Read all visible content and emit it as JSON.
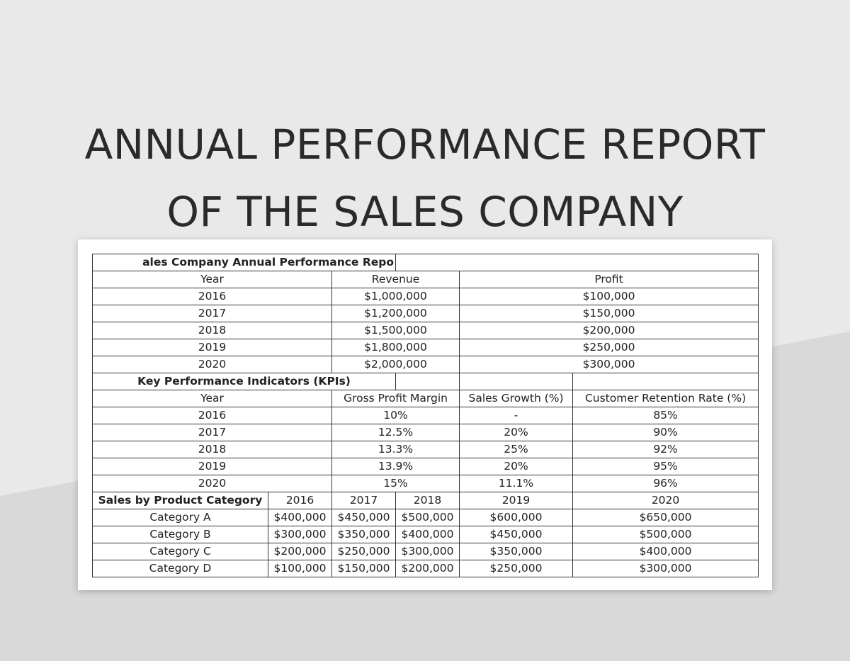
{
  "title": {
    "line1": "ANNUAL PERFORMANCE REPORT",
    "line2": "OF THE SALES COMPANY"
  },
  "sheet": {
    "section_title": "ales Company Annual Performance Repo",
    "annual": {
      "headers": [
        "Year",
        "Revenue",
        "Profit"
      ],
      "rows": [
        [
          "2016",
          "$1,000,000",
          "$100,000"
        ],
        [
          "2017",
          "$1,200,000",
          "$150,000"
        ],
        [
          "2018",
          "$1,500,000",
          "$200,000"
        ],
        [
          "2019",
          "$1,800,000",
          "$250,000"
        ],
        [
          "2020",
          "$2,000,000",
          "$300,000"
        ]
      ]
    },
    "kpi": {
      "title": "Key Performance Indicators (KPIs)",
      "headers": [
        "Year",
        "Gross Profit Margin",
        "Sales Growth (%)",
        "Customer Retention Rate (%)"
      ],
      "rows": [
        [
          "2016",
          "10%",
          "-",
          "85%"
        ],
        [
          "2017",
          "12.5%",
          "20%",
          "90%"
        ],
        [
          "2018",
          "13.3%",
          "25%",
          "92%"
        ],
        [
          "2019",
          "13.9%",
          "20%",
          "95%"
        ],
        [
          "2020",
          "15%",
          "11.1%",
          "96%"
        ]
      ]
    },
    "category": {
      "title": "Sales by Product Category",
      "headers": [
        "2016",
        "2017",
        "2018",
        "2019",
        "2020"
      ],
      "rows": [
        [
          "Category A",
          "$400,000",
          "$450,000",
          "$500,000",
          "$600,000",
          "$650,000"
        ],
        [
          "Category B",
          "$300,000",
          "$350,000",
          "$400,000",
          "$450,000",
          "$500,000"
        ],
        [
          "Category C",
          "$200,000",
          "$250,000",
          "$300,000",
          "$350,000",
          "$400,000"
        ],
        [
          "Category D",
          "$100,000",
          "$150,000",
          "$200,000",
          "$250,000",
          "$300,000"
        ]
      ]
    }
  }
}
